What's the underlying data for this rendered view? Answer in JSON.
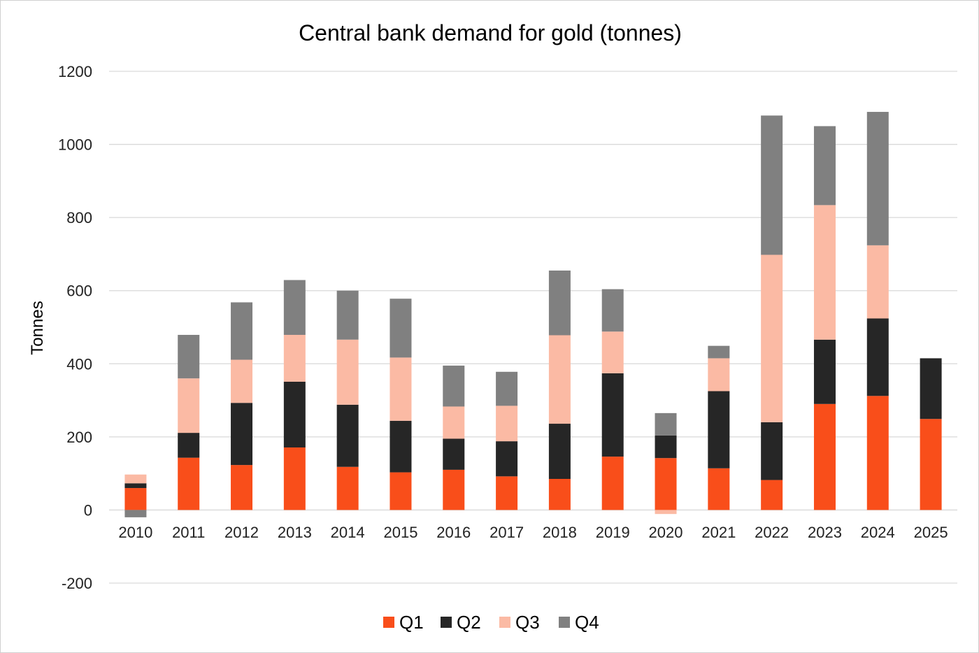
{
  "chart_data": {
    "type": "bar",
    "stacked": true,
    "title": "Central bank demand for gold (tonnes)",
    "xlabel": "",
    "ylabel": "Tonnes",
    "ylim": [
      -200,
      1200
    ],
    "yticks": [
      -200,
      0,
      200,
      400,
      600,
      800,
      1000,
      1200
    ],
    "grid": true,
    "legend_position": "bottom",
    "categories": [
      "2010",
      "2011",
      "2012",
      "2013",
      "2014",
      "2015",
      "2016",
      "2017",
      "2018",
      "2019",
      "2020",
      "2021",
      "2022",
      "2023",
      "2024",
      "2025"
    ],
    "series": [
      {
        "name": "Q1",
        "color": "#f94e1a",
        "values": [
          60,
          143,
          123,
          171,
          118,
          103,
          110,
          92,
          85,
          146,
          142,
          114,
          82,
          290,
          312,
          249
        ]
      },
      {
        "name": "Q2",
        "color": "#262626",
        "values": [
          13,
          68,
          170,
          180,
          170,
          141,
          85,
          96,
          151,
          228,
          62,
          211,
          158,
          176,
          212,
          166
        ]
      },
      {
        "name": "Q3",
        "color": "#fbbaa4",
        "values": [
          24,
          149,
          118,
          128,
          178,
          173,
          88,
          97,
          242,
          114,
          -11,
          90,
          458,
          368,
          200,
          0
        ]
      },
      {
        "name": "Q4",
        "color": "#808080",
        "values": [
          -20,
          119,
          157,
          150,
          134,
          161,
          112,
          93,
          177,
          116,
          61,
          34,
          381,
          216,
          365,
          0
        ]
      }
    ]
  }
}
